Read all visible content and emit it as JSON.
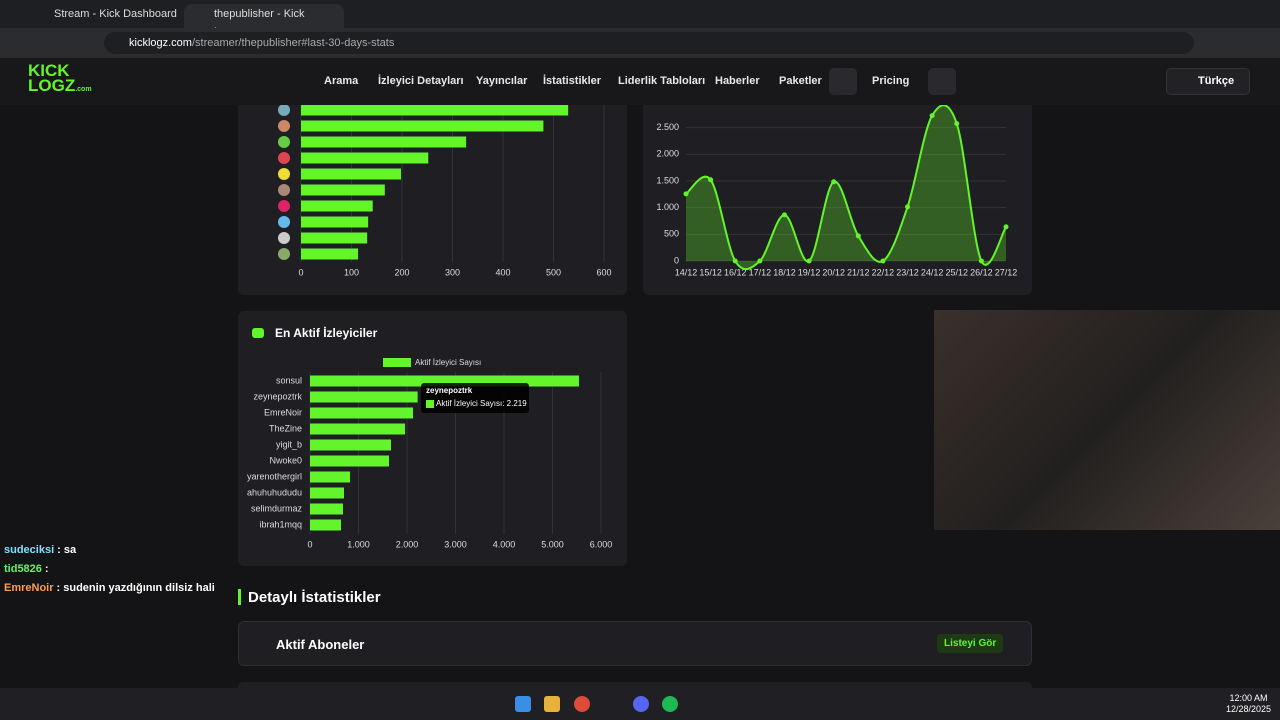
{
  "browser": {
    "tabs": [
      "Stream - Kick Dashboard",
      "thepublisher - Kick İstatistikleri"
    ],
    "url_host": "kicklogz.com",
    "url_path": "/streamer/thepublisher#last-30-days-stats"
  },
  "site": {
    "logo_top": "KICK",
    "logo_bottom": "LOGZ",
    "logo_suffix": ".com",
    "nav": [
      "Arama",
      "İzleyici Detayları",
      "Yayıncılar",
      "İstatistikler",
      "Liderlik Tabloları",
      "Haberler",
      "Paketler"
    ],
    "pricing": "Pricing",
    "language": "Türkçe"
  },
  "chart_data": [
    {
      "type": "hbar",
      "categories": [
        null,
        null,
        null,
        null,
        null,
        null,
        null,
        null,
        null,
        null
      ],
      "values": [
        529,
        480,
        327,
        252,
        198,
        166,
        142,
        133,
        131,
        113
      ],
      "color": "#62f52b",
      "xlim": [
        0,
        600
      ],
      "xticks": [
        0,
        100,
        200,
        300,
        400,
        500,
        600
      ],
      "grid": true
    },
    {
      "type": "line",
      "categories": [
        "14/12",
        "15/12",
        "16/12",
        "17/12",
        "18/12",
        "19/12",
        "20/12",
        "21/12",
        "22/12",
        "23/12",
        "24/12",
        "25/12",
        "26/12",
        "27/12"
      ],
      "values": [
        1259,
        1523,
        0,
        0,
        865,
        0,
        1485,
        470,
        0,
        1015,
        2725,
        2575,
        0,
        640
      ],
      "color": "#62f52b",
      "ylim": [
        0,
        3000
      ],
      "yticks": [
        0,
        {
          "value": 500,
          "label": "500"
        },
        {
          "value": 1000,
          "label": "1.000"
        },
        {
          "value": 1500,
          "label": "1.500"
        },
        {
          "value": 2000,
          "label": "2.000"
        },
        {
          "value": 2500,
          "label": "2.500"
        }
      ],
      "grid": true
    },
    {
      "type": "hbar",
      "title": "En Aktif İzleyiciler",
      "categories": [
        "sonsul",
        "zeynepoztrk",
        "EmreNoir",
        "TheZine",
        "yigit_b",
        "Nwoke0",
        "yarenothergirl",
        "ahuhuhududu",
        "selimdurmaz",
        "ibrah1mqq"
      ],
      "series": [
        {
          "name": "Aktif İzleyici Sayısı",
          "color": "#62f52b",
          "values": [
            5546,
            2219,
            2124,
            1959,
            1670,
            1629,
            825,
            701,
            680,
            639
          ]
        }
      ],
      "xlim": [
        0,
        6000
      ],
      "xticks": [
        0,
        {
          "value": 1000,
          "label": "1.000"
        },
        {
          "value": 2000,
          "label": "2.000"
        },
        {
          "value": 3000,
          "label": "3.000"
        },
        {
          "value": 4000,
          "label": "4.000"
        },
        {
          "value": 5000,
          "label": "5.000"
        },
        {
          "value": 6000,
          "label": "6.000"
        }
      ],
      "grid": true,
      "legend": "top",
      "tooltip": {
        "title": "zeynepoztrk",
        "label": "Aktif İzleyici Sayısı: 2.219"
      }
    }
  ],
  "chat": [
    {
      "user": "sudeciksi",
      "color": "#7fe0ff",
      "text": ": sa"
    },
    {
      "user": "tid5826",
      "color": "#6cf06c",
      "text": ":"
    },
    {
      "user": "EmreNoir",
      "color": "#ff9d4d",
      "text": ": sudenin yazdığının dilsiz hali"
    }
  ],
  "section": {
    "title": "Detaylı İstatistikler",
    "card": "Aktif Aboneler",
    "button": "Listeyi Gör"
  },
  "taskbar": {
    "time": "12:00 AM",
    "date": "12/28/2025"
  }
}
